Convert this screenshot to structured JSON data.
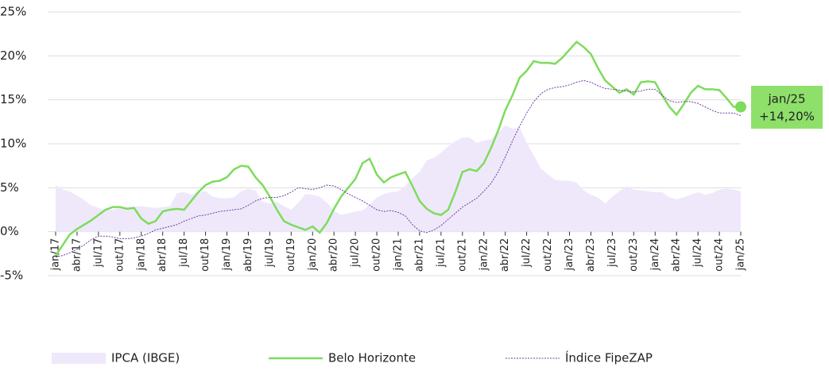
{
  "chart_data": {
    "type": "line",
    "categories": [
      "jan/17",
      null,
      null,
      "abr/17",
      null,
      null,
      "jul/17",
      null,
      null,
      "out/17",
      null,
      null,
      "jan/18",
      null,
      null,
      "abr/18",
      null,
      null,
      "jul/18",
      null,
      null,
      "out/18",
      null,
      null,
      "jan/19",
      null,
      null,
      "abr/19",
      null,
      null,
      "jul/19",
      null,
      null,
      "out/19",
      null,
      null,
      "jan/20",
      null,
      null,
      "abr/20",
      null,
      null,
      "jul/20",
      null,
      null,
      "out/20",
      null,
      null,
      "jan/21",
      null,
      null,
      "abr/21",
      null,
      null,
      "jul/21",
      null,
      null,
      "out/21",
      null,
      null,
      "jan/22",
      null,
      null,
      "abr/22",
      null,
      null,
      "jul/22",
      null,
      null,
      "out/22",
      null,
      null,
      "jan/23",
      null,
      null,
      "abr/23",
      null,
      null,
      "jul/23",
      null,
      null,
      "out/23",
      null,
      null,
      "jan/24",
      null,
      null,
      "abr/24",
      null,
      null,
      "jul/24",
      null,
      null,
      "out/24",
      null,
      null,
      "jan/25"
    ],
    "series": [
      {
        "name": "IPCA (IBGE)",
        "color": "#efe8fb",
        "style": "area",
        "values": [
          5.3,
          4.8,
          4.6,
          4.1,
          3.6,
          3.0,
          2.7,
          2.5,
          2.5,
          2.7,
          2.8,
          2.9,
          2.9,
          2.8,
          2.7,
          2.8,
          2.9,
          4.4,
          4.5,
          4.2,
          4.5,
          4.6,
          4.0,
          3.8,
          3.8,
          3.9,
          4.6,
          4.9,
          4.7,
          3.4,
          3.2,
          3.4,
          2.9,
          2.5,
          3.3,
          4.3,
          4.2,
          4.0,
          3.3,
          2.4,
          1.9,
          2.1,
          2.3,
          2.4,
          3.1,
          3.9,
          4.3,
          4.5,
          4.6,
          5.2,
          6.1,
          6.8,
          8.1,
          8.4,
          9.0,
          9.7,
          10.3,
          10.7,
          10.7,
          10.1,
          10.4,
          10.5,
          11.3,
          12.1,
          11.7,
          11.9,
          10.1,
          8.7,
          7.2,
          6.5,
          5.9,
          5.8,
          5.8,
          5.6,
          4.7,
          4.2,
          3.9,
          3.2,
          4.0,
          4.6,
          5.2,
          4.8,
          4.7,
          4.6,
          4.5,
          4.5,
          3.9,
          3.7,
          3.9,
          4.2,
          4.5,
          4.2,
          4.4,
          4.8,
          4.9,
          4.8,
          4.6
        ]
      },
      {
        "name": "Belo Horizonte",
        "color": "#7ddc5c",
        "style": "solid",
        "values": [
          -2.7,
          -1.5,
          -0.3,
          0.3,
          0.8,
          1.3,
          1.9,
          2.5,
          2.8,
          2.8,
          2.6,
          2.7,
          1.5,
          0.9,
          1.2,
          2.3,
          2.5,
          2.6,
          2.5,
          3.5,
          4.5,
          5.3,
          5.7,
          5.8,
          6.2,
          7.1,
          7.5,
          7.4,
          6.2,
          5.3,
          4.0,
          2.5,
          1.2,
          0.8,
          0.5,
          0.2,
          0.6,
          -0.1,
          1.0,
          2.6,
          4.0,
          5.0,
          6.0,
          7.8,
          8.3,
          6.5,
          5.6,
          6.2,
          6.5,
          6.8,
          5.2,
          3.5,
          2.6,
          2.1,
          1.9,
          2.5,
          4.5,
          6.8,
          7.1,
          6.9,
          7.8,
          9.5,
          11.5,
          13.8,
          15.5,
          17.5,
          18.3,
          19.4,
          19.2,
          19.2,
          19.1,
          19.8,
          20.7,
          21.6,
          21.0,
          20.2,
          18.6,
          17.2,
          16.5,
          15.8,
          16.2,
          15.6,
          17.0,
          17.1,
          17.0,
          15.5,
          14.2,
          13.3,
          14.5,
          15.8,
          16.6,
          16.2,
          16.2,
          16.1,
          15.2,
          14.2,
          14.2
        ]
      },
      {
        "name": "Índice FipeZAP",
        "color": "#6b3fa0",
        "style": "dotted",
        "values": [
          -2.9,
          -2.7,
          -2.4,
          -2.0,
          -1.5,
          -0.9,
          -0.5,
          -0.5,
          -0.6,
          -0.8,
          -0.8,
          -0.7,
          -0.5,
          -0.2,
          0.2,
          0.4,
          0.6,
          0.8,
          1.2,
          1.5,
          1.8,
          1.9,
          2.1,
          2.3,
          2.4,
          2.5,
          2.6,
          3.0,
          3.5,
          3.8,
          3.9,
          3.9,
          4.1,
          4.5,
          5.0,
          4.9,
          4.8,
          5.0,
          5.3,
          5.2,
          4.8,
          4.3,
          3.9,
          3.5,
          3.0,
          2.5,
          2.3,
          2.4,
          2.2,
          1.8,
          0.8,
          0.1,
          -0.1,
          0.2,
          0.7,
          1.4,
          2.1,
          2.8,
          3.3,
          3.8,
          4.6,
          5.5,
          6.8,
          8.5,
          10.3,
          12.0,
          13.5,
          14.8,
          15.7,
          16.2,
          16.4,
          16.5,
          16.7,
          17.0,
          17.2,
          17.0,
          16.6,
          16.3,
          16.2,
          16.1,
          16.0,
          15.9,
          16.0,
          16.2,
          16.2,
          15.5,
          14.9,
          14.7,
          14.8,
          14.8,
          14.6,
          14.2,
          13.8,
          13.5,
          13.5,
          13.5,
          13.2
        ]
      }
    ],
    "annotation": "+14,20%",
    "ylim": [
      -5,
      25
    ],
    "yticks": [
      {
        "value": -5,
        "label": "-5%"
      },
      {
        "value": 0,
        "label": "0%"
      },
      {
        "value": 5,
        "label": "5%"
      },
      {
        "value": 10,
        "label": "10%"
      },
      {
        "value": 15,
        "label": "15%"
      },
      {
        "value": 20,
        "label": "20%"
      },
      {
        "value": 25,
        "label": "25%"
      }
    ],
    "grid": true,
    "legend": "bottom"
  }
}
